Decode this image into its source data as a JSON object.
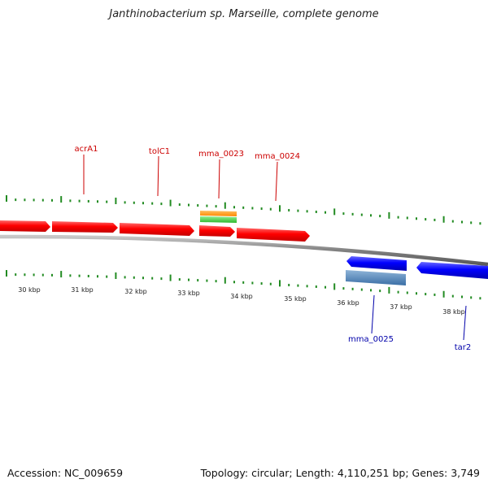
{
  "title": "Janthinobacterium sp. Marseille, complete genome",
  "footer": {
    "accession": "Accession: NC_009659",
    "stats": "Topology: circular; Length: 4,110,251 bp; Genes: 3,749"
  },
  "colors": {
    "forward_gene": "#ff0000",
    "reverse_gene": "#0000ff",
    "backbone": "#8c8c8c",
    "tick": "#228b22",
    "forward_label": "#cc0000",
    "reverse_label": "#0000aa",
    "orange_feature": "#ff8c00",
    "green_feature": "#32cd32",
    "steel_feature": "#4682b4"
  },
  "scale_labels": [
    "30 kbp",
    "31 kbp",
    "32 kbp",
    "33 kbp",
    "34 kbp",
    "35 kbp",
    "36 kbp",
    "37 kbp",
    "38 kbp"
  ],
  "gene_labels": [
    "acrA1",
    "tolC1",
    "mma_0023",
    "mma_0024",
    "mma_0025",
    "tar2"
  ]
}
